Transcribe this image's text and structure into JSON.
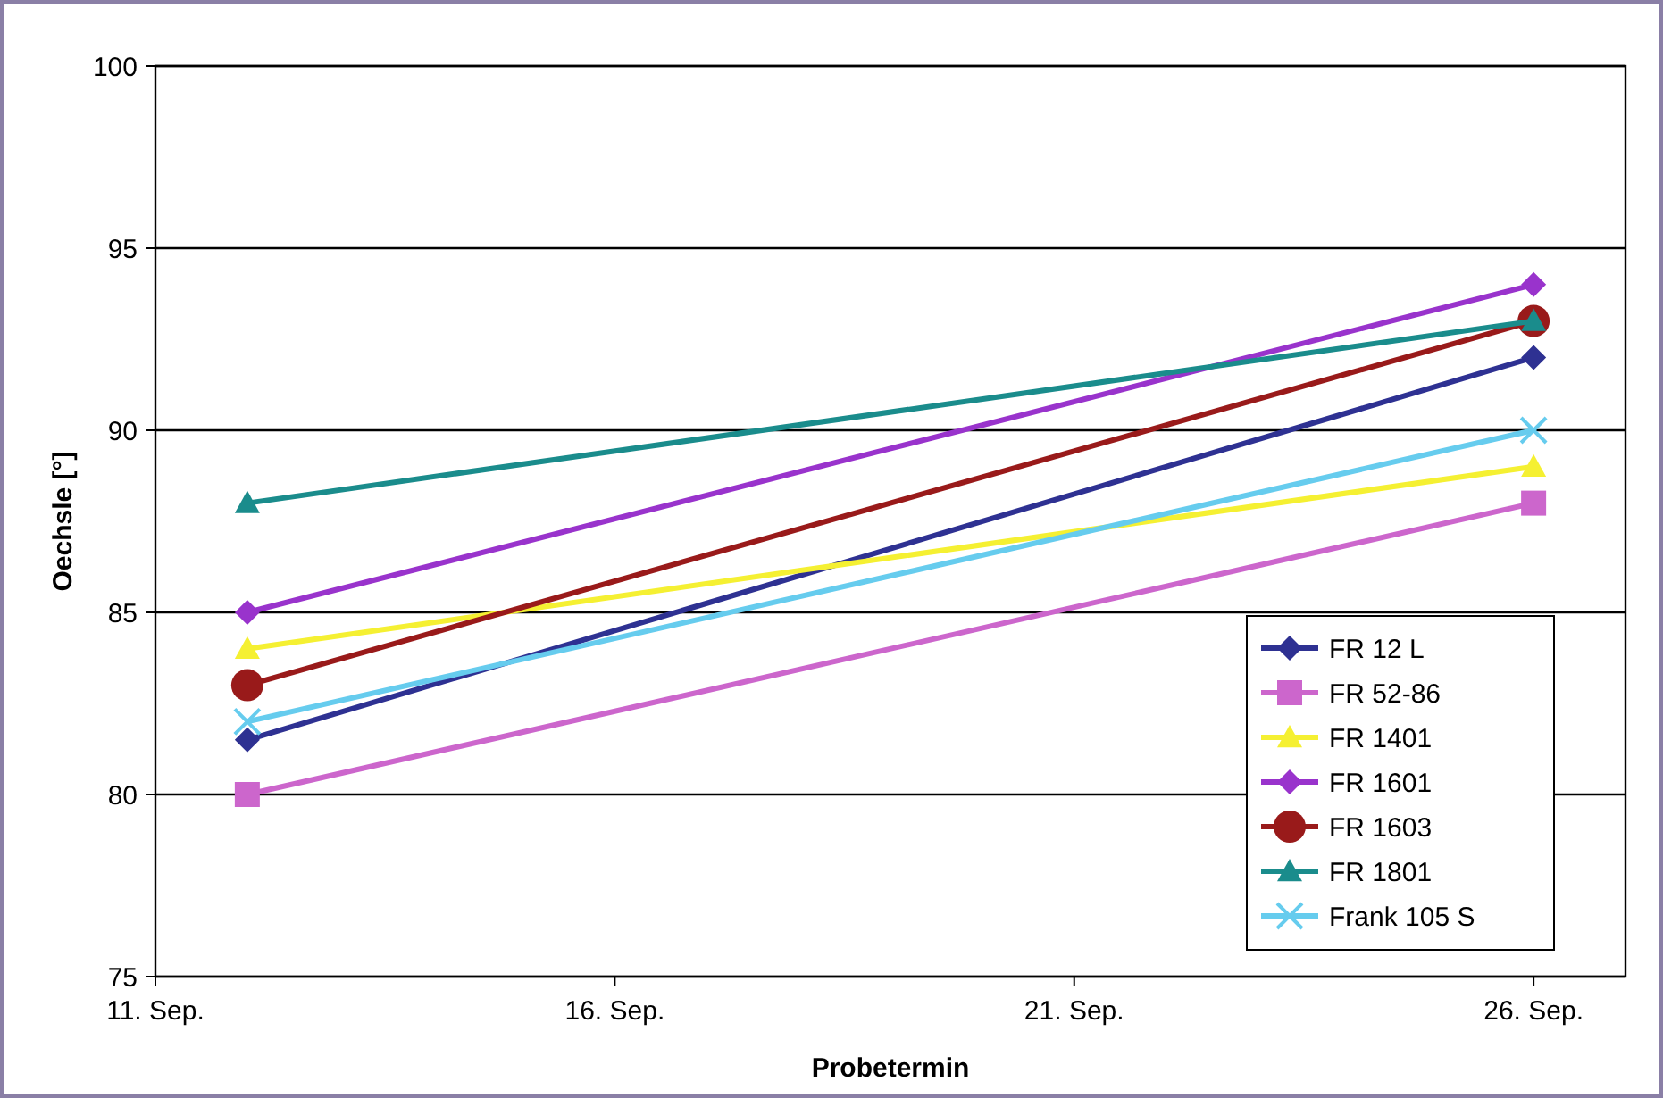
{
  "chart_data": {
    "type": "line",
    "xlabel": "Probetermin",
    "ylabel": "Oechsle [°]",
    "xlim": [
      "--09-11",
      "--09-27"
    ],
    "xticks": [
      {
        "value": "--09-11",
        "label": "11. Sep."
      },
      {
        "value": "--09-16",
        "label": "16. Sep."
      },
      {
        "value": "--09-21",
        "label": "21. Sep."
      },
      {
        "value": "--09-26",
        "label": "26. Sep."
      }
    ],
    "ylim": [
      75,
      100
    ],
    "yticks": [
      75,
      80,
      85,
      90,
      95,
      100
    ],
    "grid": "y",
    "legend": "right",
    "x": [
      "--09-12",
      "--09-26"
    ],
    "series": [
      {
        "name": "FR 12 L",
        "color": "#2e3192",
        "marker": "diamond",
        "values": [
          81.5,
          92
        ]
      },
      {
        "name": "FR 52-86",
        "color": "#cc66cc",
        "marker": "square",
        "values": [
          80,
          88
        ]
      },
      {
        "name": "FR 1401",
        "color": "#f5f032",
        "marker": "triangle",
        "values": [
          84,
          89
        ]
      },
      {
        "name": "FR 1601",
        "color": "#9933cc",
        "marker": "diamond",
        "values": [
          85,
          94
        ]
      },
      {
        "name": "FR 1603",
        "color": "#991a1a",
        "marker": "circle",
        "values": [
          83,
          93
        ]
      },
      {
        "name": "FR 1801",
        "color": "#1a8c8c",
        "marker": "triangle",
        "values": [
          88,
          93
        ]
      },
      {
        "name": "Frank 105 S",
        "color": "#66ccee",
        "marker": "cross",
        "values": [
          82,
          90
        ]
      }
    ]
  }
}
